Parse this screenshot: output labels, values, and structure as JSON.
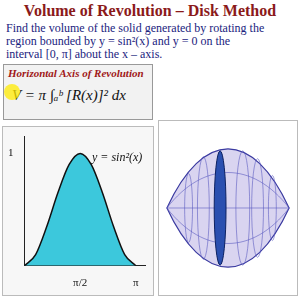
{
  "header": {
    "title": "Volume of Revolution – Disk Method"
  },
  "problem": [
    "Find the volume of the solid generated by rotating the",
    "region bounded by y = sin²(x) and y = 0 on the",
    "interval [0, π] about the x – axis."
  ],
  "formula_box": {
    "heading": "Horizontal Axis of Revolution",
    "formula": "V = π ∫ₐᵇ [R(x)]² dx"
  },
  "chart_data": {
    "type": "line",
    "x": [
      0,
      0.314,
      0.628,
      0.942,
      1.257,
      1.571,
      1.885,
      2.199,
      2.513,
      2.827,
      3.142
    ],
    "values": [
      0,
      0.1,
      0.35,
      0.65,
      0.9,
      1,
      0.9,
      0.65,
      0.35,
      0.1,
      0
    ],
    "color": "#3cc8dc",
    "xlim": [
      0,
      3.4
    ],
    "ylim": [
      0,
      1.15
    ],
    "xticks": [
      {
        "value": 1.571,
        "label": "π/2"
      },
      {
        "value": 3.142,
        "label": "π"
      }
    ],
    "yticks": [
      1
    ],
    "grid": false,
    "annotations": [
      "y = sin²(x)"
    ]
  }
}
